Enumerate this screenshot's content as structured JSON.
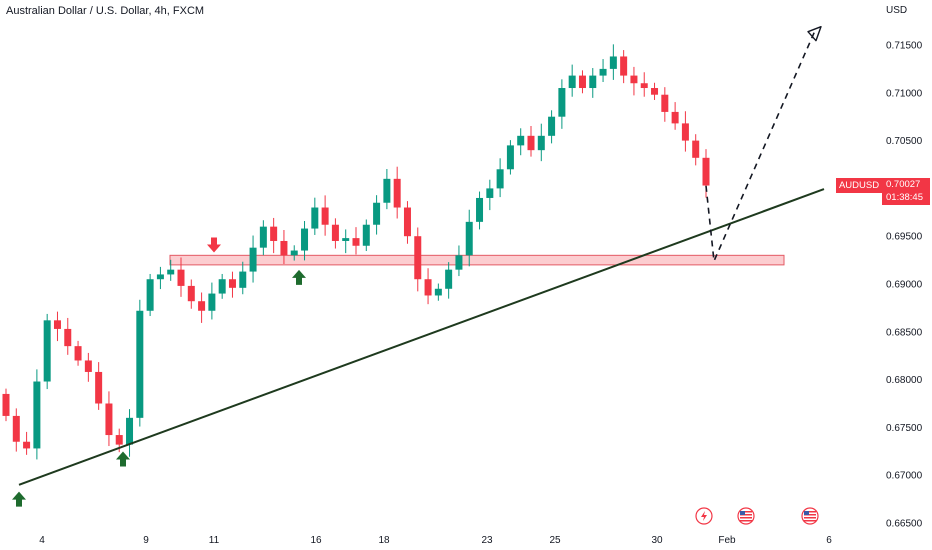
{
  "header": {
    "title": "Australian Dollar / U.S. Dollar, 4h, FXCM",
    "currency": "USD"
  },
  "price_tag": {
    "symbol": "AUDUSD",
    "price": "0.70027",
    "countdown": "01:38:45"
  },
  "colors": {
    "up": "#089981",
    "down": "#f23645",
    "trendline": "#1e3a1e",
    "arrow_up": "#1e6b2e",
    "arrow_down": "#f23645",
    "zone_fill": "rgba(242,54,69,0.25)",
    "zone_border": "#e35a64"
  },
  "event_icons": [
    "lightning-icon",
    "us-flag-icon",
    "us-flag-icon"
  ],
  "chart_data": {
    "type": "candlestick",
    "symbol": "AUDUSD",
    "timeframe": "4h",
    "y_ticks": [
      "0.71500",
      "0.71000",
      "0.70500",
      "0.70000",
      "0.69500",
      "0.69000",
      "0.68500",
      "0.68000",
      "0.67500",
      "0.67000",
      "0.66500"
    ],
    "x_ticks": [
      "4",
      "9",
      "11",
      "16",
      "18",
      "23",
      "25",
      "30",
      "Feb",
      "6"
    ],
    "ylim": [
      0.665,
      0.7175
    ],
    "grid": false,
    "close_series": [
      0.6762,
      0.6735,
      0.6728,
      0.6798,
      0.6862,
      0.6853,
      0.6835,
      0.682,
      0.6808,
      0.6775,
      0.6742,
      0.6732,
      0.676,
      0.6872,
      0.6905,
      0.691,
      0.6915,
      0.6898,
      0.6882,
      0.6872,
      0.689,
      0.6905,
      0.6896,
      0.6913,
      0.6938,
      0.696,
      0.6945,
      0.693,
      0.6935,
      0.6958,
      0.698,
      0.6962,
      0.6945,
      0.6948,
      0.694,
      0.6962,
      0.6985,
      0.701,
      0.698,
      0.695,
      0.6905,
      0.6888,
      0.6895,
      0.6915,
      0.693,
      0.6965,
      0.699,
      0.7,
      0.702,
      0.7045,
      0.7055,
      0.704,
      0.7055,
      0.7075,
      0.7105,
      0.7118,
      0.7105,
      0.7118,
      0.7125,
      0.7138,
      0.7118,
      0.711,
      0.7105,
      0.7098,
      0.708,
      0.7068,
      0.705,
      0.7032,
      0.7003
    ],
    "support_zone": [
      0.692,
      0.693
    ],
    "trendline": {
      "from": [
        "4",
        0.669
      ],
      "to": [
        "Feb",
        0.6962
      ]
    },
    "projection": [
      0.70027,
      0.6924,
      0.7165
    ],
    "markers": [
      {
        "type": "arrow-up",
        "x": "3",
        "price": 0.6688
      },
      {
        "type": "arrow-up",
        "x": "8",
        "price": 0.673
      },
      {
        "type": "arrow-down",
        "x": "11",
        "price": 0.6935
      },
      {
        "type": "arrow-up",
        "x": "15",
        "price": 0.692
      }
    ]
  }
}
